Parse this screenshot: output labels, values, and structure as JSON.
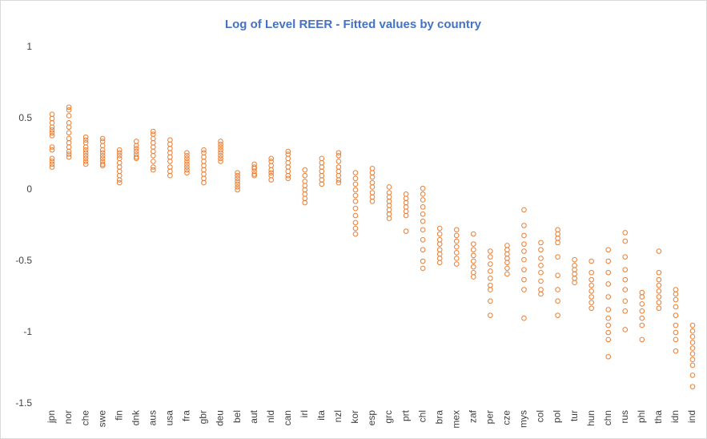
{
  "chart_data": {
    "type": "scatter",
    "title": "Log of Level REER - Fitted values by country",
    "categories": [
      "jpn",
      "nor",
      "che",
      "swe",
      "fin",
      "dnk",
      "aus",
      "usa",
      "fra",
      "gbr",
      "deu",
      "bel",
      "aut",
      "nld",
      "can",
      "irl",
      "ita",
      "nzl",
      "kor",
      "esp",
      "grc",
      "prt",
      "chl",
      "bra",
      "mex",
      "zaf",
      "per",
      "cze",
      "mys",
      "col",
      "pol",
      "tur",
      "hun",
      "chn",
      "rus",
      "phl",
      "tha",
      "idn",
      "ind"
    ],
    "values": [
      [
        0.53,
        0.5,
        0.47,
        0.44,
        0.42,
        0.4,
        0.38,
        0.3,
        0.28,
        0.22,
        0.2,
        0.18,
        0.16
      ],
      [
        0.58,
        0.56,
        0.52,
        0.47,
        0.44,
        0.4,
        0.36,
        0.33,
        0.3,
        0.27,
        0.25,
        0.23
      ],
      [
        0.37,
        0.35,
        0.33,
        0.3,
        0.28,
        0.26,
        0.24,
        0.22,
        0.2,
        0.18
      ],
      [
        0.36,
        0.34,
        0.31,
        0.28,
        0.26,
        0.24,
        0.22,
        0.2,
        0.18,
        0.17
      ],
      [
        0.28,
        0.26,
        0.24,
        0.22,
        0.19,
        0.16,
        0.13,
        0.1,
        0.07,
        0.05
      ],
      [
        0.34,
        0.31,
        0.29,
        0.27,
        0.25,
        0.23,
        0.22
      ],
      [
        0.41,
        0.39,
        0.36,
        0.33,
        0.3,
        0.27,
        0.24,
        0.2,
        0.16,
        0.14
      ],
      [
        0.35,
        0.32,
        0.29,
        0.26,
        0.23,
        0.2,
        0.16,
        0.13,
        0.1
      ],
      [
        0.26,
        0.24,
        0.22,
        0.2,
        0.18,
        0.16,
        0.14,
        0.12
      ],
      [
        0.28,
        0.26,
        0.23,
        0.2,
        0.17,
        0.14,
        0.11,
        0.08,
        0.05
      ],
      [
        0.34,
        0.32,
        0.3,
        0.28,
        0.26,
        0.24,
        0.22,
        0.2
      ],
      [
        0.12,
        0.1,
        0.08,
        0.06,
        0.04,
        0.02,
        0.0
      ],
      [
        0.18,
        0.16,
        0.15,
        0.13,
        0.11,
        0.1
      ],
      [
        0.22,
        0.2,
        0.17,
        0.14,
        0.12,
        0.1,
        0.07
      ],
      [
        0.27,
        0.25,
        0.22,
        0.19,
        0.16,
        0.13,
        0.1,
        0.08
      ],
      [
        0.14,
        0.1,
        0.06,
        0.03,
        0.0,
        -0.03,
        -0.06,
        -0.09
      ],
      [
        0.22,
        0.19,
        0.16,
        0.13,
        0.1,
        0.07,
        0.04
      ],
      [
        0.26,
        0.24,
        0.2,
        0.16,
        0.13,
        0.1,
        0.07,
        0.05
      ],
      [
        0.12,
        0.08,
        0.04,
        0.0,
        -0.04,
        -0.08,
        -0.13,
        -0.18,
        -0.23,
        -0.27,
        -0.31
      ],
      [
        0.15,
        0.12,
        0.09,
        0.05,
        0.02,
        -0.02,
        -0.05,
        -0.08
      ],
      [
        0.02,
        -0.02,
        -0.05,
        -0.08,
        -0.11,
        -0.14,
        -0.17,
        -0.2
      ],
      [
        -0.03,
        -0.06,
        -0.09,
        -0.12,
        -0.15,
        -0.18,
        -0.29
      ],
      [
        0.01,
        -0.03,
        -0.07,
        -0.12,
        -0.17,
        -0.22,
        -0.28,
        -0.35,
        -0.42,
        -0.5,
        -0.55
      ],
      [
        -0.27,
        -0.31,
        -0.35,
        -0.38,
        -0.42,
        -0.45,
        -0.48,
        -0.51
      ],
      [
        -0.28,
        -0.32,
        -0.36,
        -0.4,
        -0.44,
        -0.48,
        -0.52
      ],
      [
        -0.31,
        -0.38,
        -0.42,
        -0.46,
        -0.5,
        -0.54,
        -0.58,
        -0.61
      ],
      [
        -0.43,
        -0.47,
        -0.52,
        -0.57,
        -0.62,
        -0.67,
        -0.7,
        -0.78,
        -0.88
      ],
      [
        -0.39,
        -0.42,
        -0.45,
        -0.48,
        -0.51,
        -0.55,
        -0.59
      ],
      [
        -0.14,
        -0.25,
        -0.32,
        -0.38,
        -0.43,
        -0.49,
        -0.56,
        -0.63,
        -0.7,
        -0.9
      ],
      [
        -0.37,
        -0.42,
        -0.48,
        -0.53,
        -0.58,
        -0.64,
        -0.7,
        -0.73
      ],
      [
        -0.28,
        -0.31,
        -0.34,
        -0.37,
        -0.47,
        -0.6,
        -0.7,
        -0.78,
        -0.88
      ],
      [
        -0.49,
        -0.53,
        -0.56,
        -0.59,
        -0.62,
        -0.65
      ],
      [
        -0.5,
        -0.58,
        -0.63,
        -0.67,
        -0.71,
        -0.75,
        -0.79,
        -0.83
      ],
      [
        -0.42,
        -0.5,
        -0.58,
        -0.66,
        -0.75,
        -0.84,
        -0.9,
        -0.95,
        -1.0,
        -1.05,
        -1.17
      ],
      [
        -0.3,
        -0.36,
        -0.47,
        -0.56,
        -0.63,
        -0.7,
        -0.78,
        -0.85,
        -0.98
      ],
      [
        -0.72,
        -0.75,
        -0.8,
        -0.85,
        -0.9,
        -0.95,
        -1.05
      ],
      [
        -0.43,
        -0.58,
        -0.63,
        -0.67,
        -0.71,
        -0.75,
        -0.79,
        -0.83
      ],
      [
        -0.7,
        -0.73,
        -0.77,
        -0.82,
        -0.88,
        -0.95,
        -1.0,
        -1.05,
        -1.13
      ],
      [
        -0.95,
        -0.99,
        -1.03,
        -1.07,
        -1.11,
        -1.15,
        -1.19,
        -1.23,
        -1.3,
        -1.38
      ]
    ],
    "color": "#ed7d31",
    "ylim": [
      -1.5,
      1
    ],
    "yticks": [
      1,
      0.5,
      0,
      -0.5,
      -1,
      -1.5
    ],
    "grid": false
  }
}
